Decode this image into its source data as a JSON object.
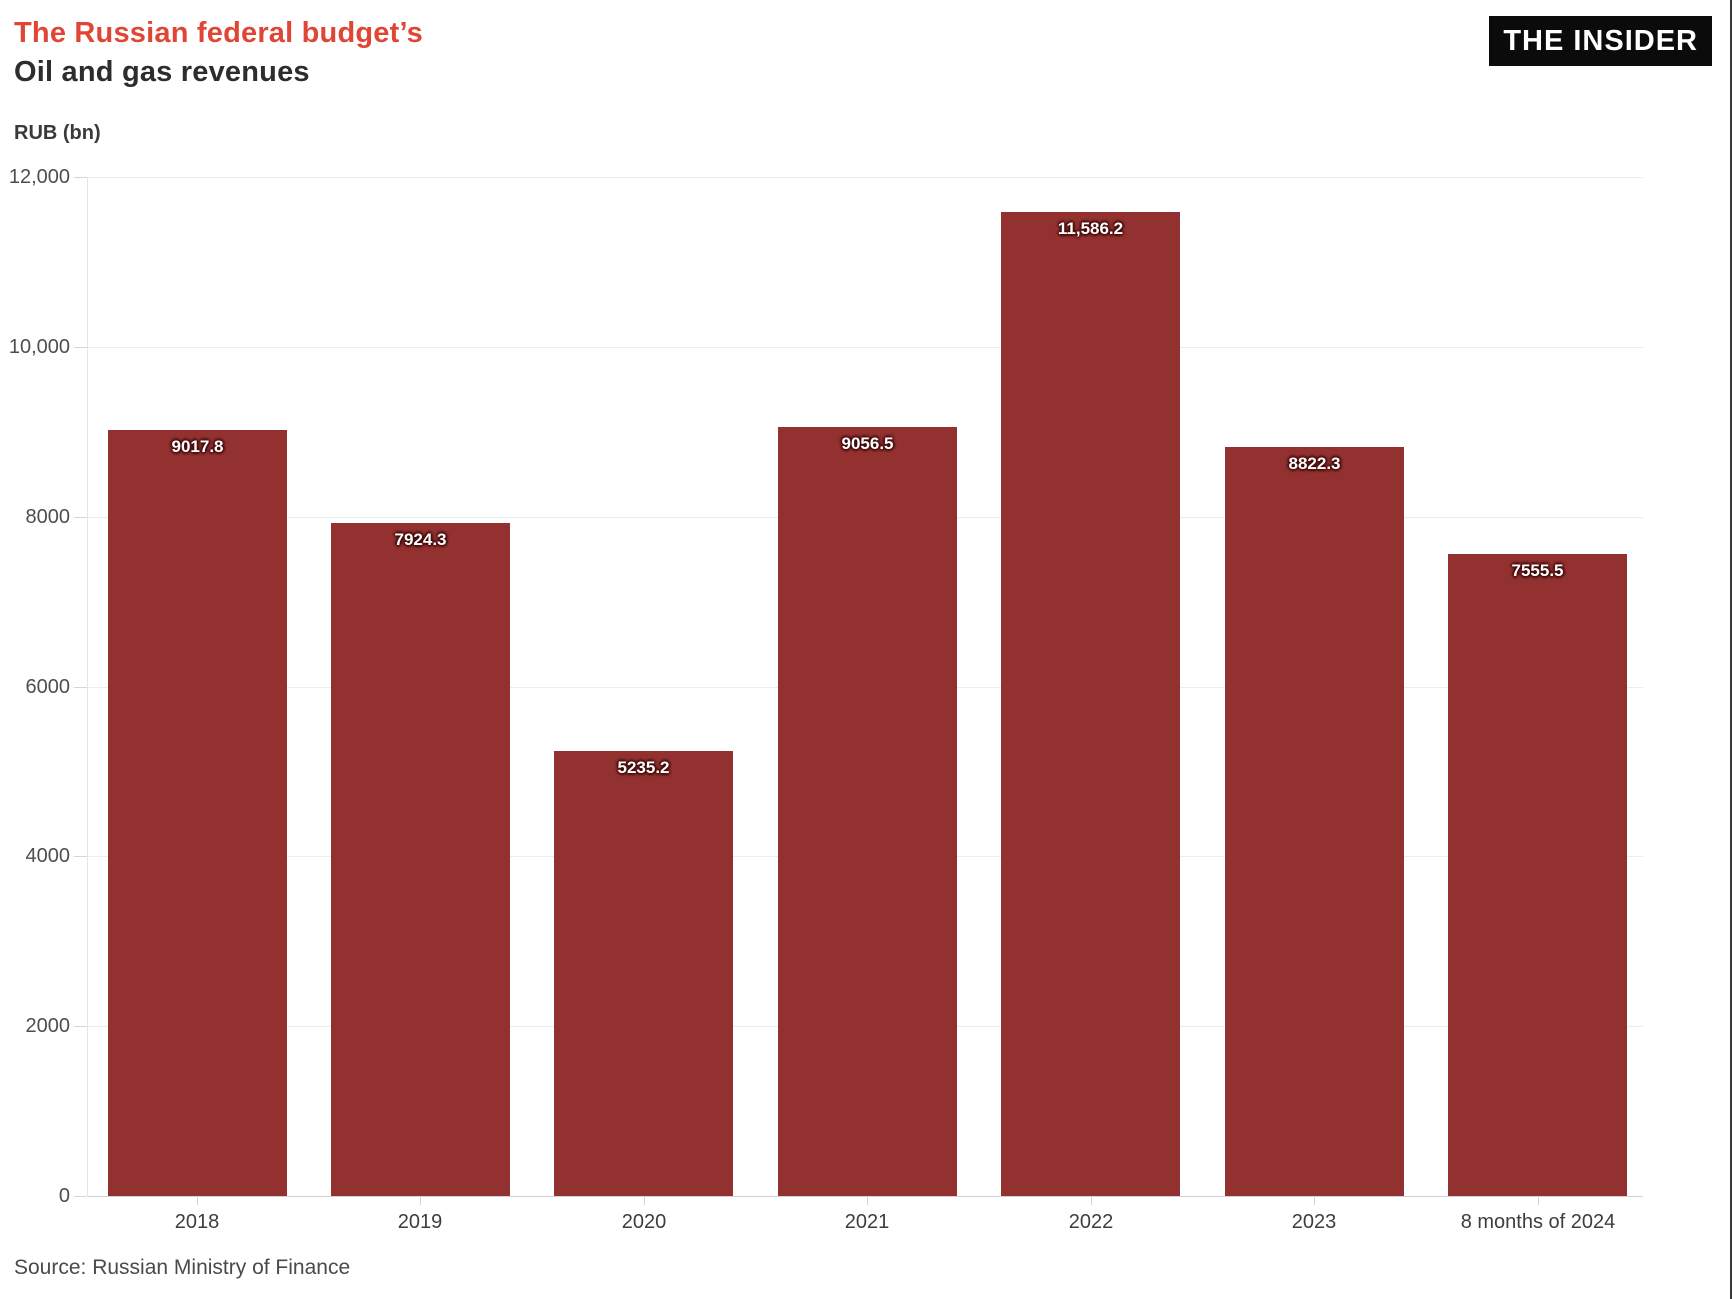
{
  "header": {
    "title_line1": "The Russian federal budget’s",
    "title_line2": "Oil and gas revenues",
    "logo_text": "THE INSIDER"
  },
  "axis_unit_label": "RUB (bn)",
  "source_text": "Source: Russian Ministry of Finance",
  "colors": {
    "title_accent": "#e04636",
    "title_secondary": "#2d2d2d",
    "bar_fill": "#92312f",
    "logo_bg": "#0b0b0b",
    "logo_text": "#ffffff"
  },
  "chart_data": {
    "type": "bar",
    "title": "The Russian federal budget’s Oil and gas revenues",
    "xlabel": "",
    "ylabel": "RUB (bn)",
    "categories": [
      "2018",
      "2019",
      "2020",
      "2021",
      "2022",
      "2023",
      "8 months of 2024"
    ],
    "values": [
      9017.8,
      7924.3,
      5235.2,
      9056.5,
      11586.2,
      8822.3,
      7555.5
    ],
    "value_labels": [
      "9017.8",
      "7924.3",
      "5235.2",
      "9056.5",
      "11,586.2",
      "8822.3",
      "7555.5"
    ],
    "ylim": [
      0,
      12000
    ],
    "yticks": [
      {
        "value": 12000,
        "label": "12,000"
      },
      {
        "value": 10000,
        "label": "10,000"
      },
      {
        "value": 8000,
        "label": "8000"
      },
      {
        "value": 6000,
        "label": "6000"
      },
      {
        "value": 4000,
        "label": "4000"
      },
      {
        "value": 2000,
        "label": "2000"
      },
      {
        "value": 0,
        "label": "0"
      }
    ],
    "grid": "horizontal",
    "legend": "none",
    "bar_color": "#92312f"
  }
}
